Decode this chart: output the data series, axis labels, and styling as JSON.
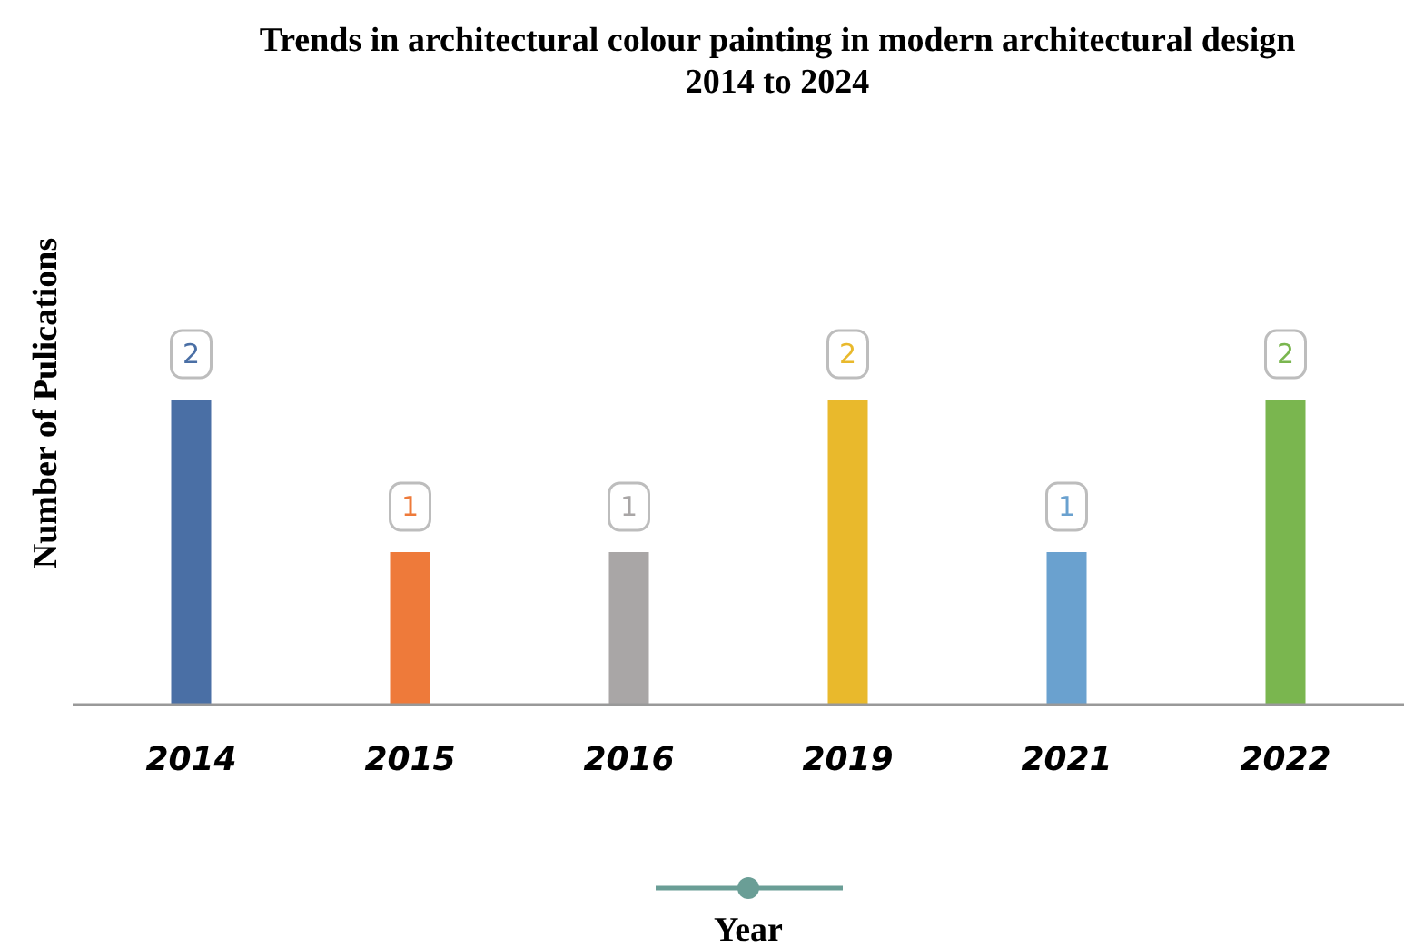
{
  "chart_data": {
    "type": "bar",
    "title": "Trends in architectural colour painting in modern architectural design",
    "subtitle": "2014 to 2024",
    "xlabel": "Year",
    "ylabel": "Number of Pulications",
    "categories": [
      "2014",
      "2015",
      "2016",
      "2019",
      "2021",
      "2022"
    ],
    "values": [
      2,
      1,
      1,
      2,
      1,
      2
    ],
    "colors": [
      "#4a6fa5",
      "#ee7a3a",
      "#a9a6a6",
      "#e9b92c",
      "#6aa1cf",
      "#7ab64f"
    ],
    "data_labels": true
  }
}
